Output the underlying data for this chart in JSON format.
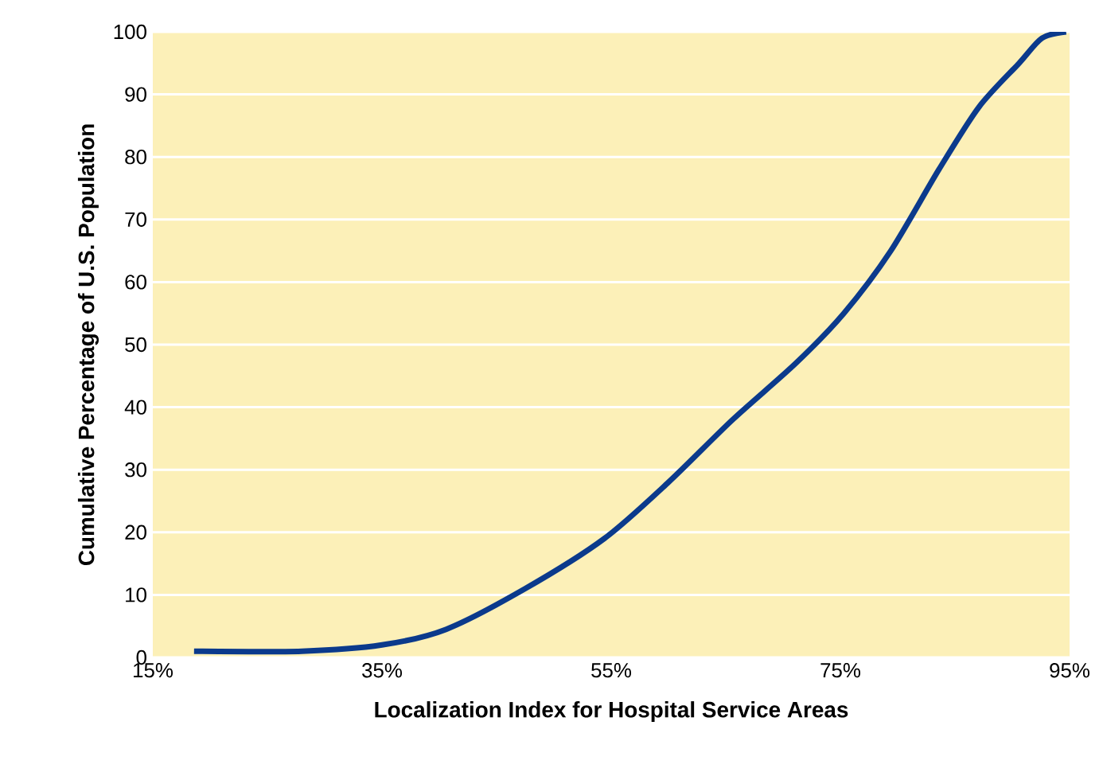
{
  "chart_data": {
    "type": "line",
    "xlabel": "Localization Index for Hospital Service Areas",
    "ylabel": "Cumulative Percentage of U.S. Population",
    "x": [
      18.6,
      28,
      35,
      40.6,
      47.5,
      54.4,
      60,
      65.6,
      71.1,
      75.3,
      79.4,
      83.6,
      87.1,
      90.6,
      92.6,
      94.7
    ],
    "series": [
      {
        "color": "#0b3a8c",
        "values": [
          1,
          1,
          2,
          4.5,
          11,
          19,
          28,
          38,
          47,
          55,
          65,
          78,
          88,
          95,
          99,
          100
        ]
      }
    ],
    "xlim": [
      15,
      95
    ],
    "ylim": [
      0,
      100
    ],
    "xticks": [
      {
        "value": 15,
        "label": "15%"
      },
      {
        "value": 35,
        "label": "35%"
      },
      {
        "value": 55,
        "label": "55%"
      },
      {
        "value": 75,
        "label": "75%"
      },
      {
        "value": 95,
        "label": "95%"
      }
    ],
    "yticks": [
      0,
      10,
      20,
      30,
      40,
      50,
      60,
      70,
      80,
      90,
      100
    ],
    "grid": "y",
    "marker": "none",
    "line_style": "solid"
  }
}
